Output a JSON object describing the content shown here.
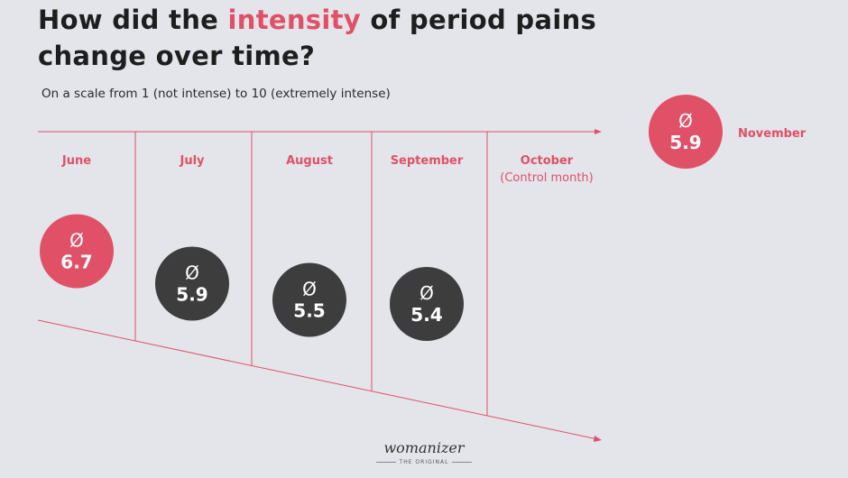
{
  "title": {
    "part1": "How did the ",
    "accent": "intensity",
    "part2": " of period pains",
    "line2": "change over time?"
  },
  "subtitle": "On a scale from 1 (not intense) to 10 (extremely intense)",
  "logo": {
    "word": "womanizer",
    "tagline": "THE ORIGINAL"
  },
  "colors": {
    "accent": "#e05067",
    "dark": "#3d3d3d",
    "background": "#e3e5ea"
  },
  "chart_data": {
    "type": "scatter",
    "title": "How did the intensity of period pains change over time?",
    "subtitle": "On a scale from 1 (not intense) to 10 (extremely intense)",
    "ylim": [
      1,
      10
    ],
    "symbol": "Ø",
    "categories": [
      "June",
      "July",
      "August",
      "September",
      "October",
      "November"
    ],
    "category_notes": [
      "",
      "",
      "",
      "",
      "(Control month)",
      ""
    ],
    "values": [
      6.7,
      5.9,
      5.5,
      5.4,
      null,
      5.9
    ],
    "labels": [
      "6.7",
      "5.9",
      "5.5",
      "5.4",
      "",
      "5.9"
    ],
    "highlight": [
      "June",
      "November"
    ]
  }
}
